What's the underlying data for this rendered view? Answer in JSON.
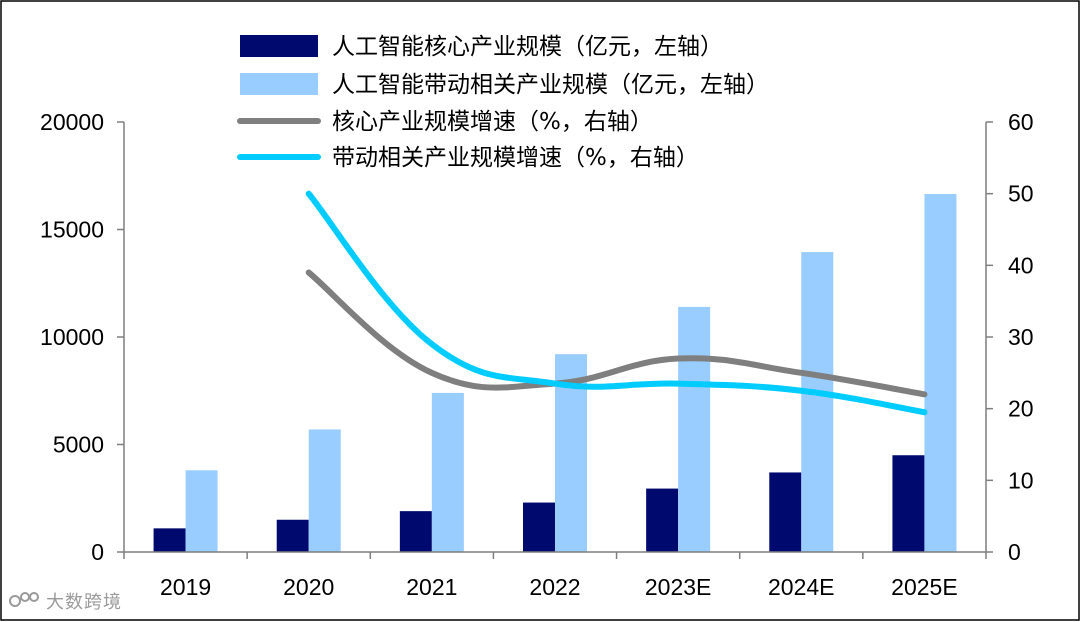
{
  "chart_data": {
    "type": "bar",
    "categories": [
      "2019",
      "2020",
      "2021",
      "2022",
      "2023E",
      "2024E",
      "2025E"
    ],
    "series": [
      {
        "name": "人工智能核心产业规模（亿元，左轴）",
        "kind": "bar",
        "axis": "left",
        "color": "#000a6e",
        "values": [
          1100,
          1500,
          1900,
          2300,
          2950,
          3700,
          4500
        ]
      },
      {
        "name": "人工智能带动相关产业规模（亿元，左轴）",
        "kind": "bar",
        "axis": "left",
        "color": "#99ccff",
        "values": [
          3800,
          5700,
          7400,
          9200,
          11400,
          13950,
          16650
        ]
      },
      {
        "name": "核心产业规模增速（%，右轴）",
        "kind": "line",
        "axis": "right",
        "color": "#7f7f7f",
        "values": [
          null,
          39,
          25,
          23.5,
          27,
          25,
          22
        ]
      },
      {
        "name": "带动相关产业规模增速（%，右轴）",
        "kind": "line",
        "axis": "right",
        "color": "#00ccff",
        "values": [
          null,
          50,
          29,
          23.5,
          23.5,
          22.5,
          19.5
        ]
      }
    ],
    "left_axis": {
      "ylim": [
        0,
        20000
      ],
      "ticks": [
        "0",
        "5000",
        "10000",
        "15000",
        "20000"
      ],
      "tick_values": [
        0,
        5000,
        10000,
        15000,
        20000
      ]
    },
    "right_axis": {
      "ylim": [
        0,
        60
      ],
      "ticks": [
        "0",
        "10",
        "20",
        "30",
        "40",
        "50",
        "60"
      ],
      "tick_values": [
        0,
        10,
        20,
        30,
        40,
        50,
        60
      ]
    },
    "title": "",
    "xlabel": "",
    "ylabel": "",
    "legend_position": "top"
  },
  "watermark": {
    "text": "大数跨境",
    "logo_icon": "brand-logo-icon"
  }
}
